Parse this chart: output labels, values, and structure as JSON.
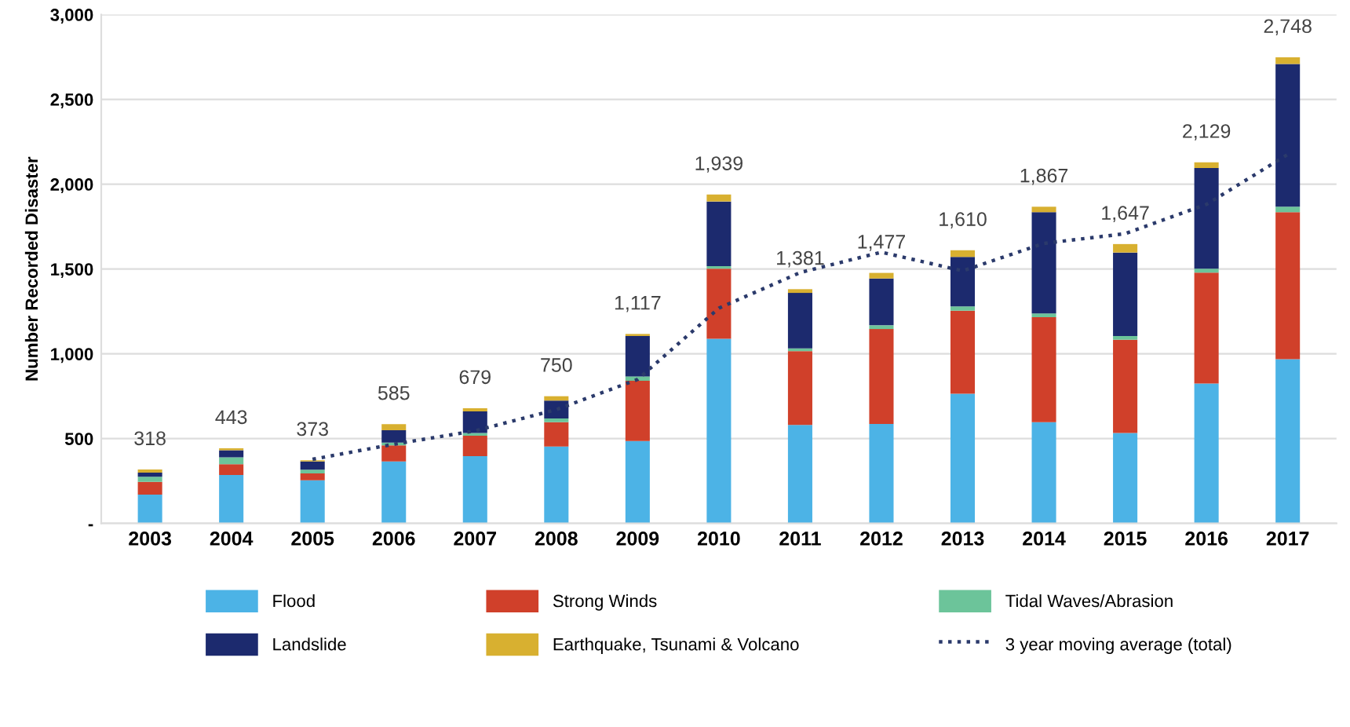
{
  "chart_data": {
    "type": "bar",
    "stacked": true,
    "ylabel": "Number Recorded Disaster",
    "categories": [
      "2003",
      "2004",
      "2005",
      "2006",
      "2007",
      "2008",
      "2009",
      "2010",
      "2011",
      "2012",
      "2013",
      "2014",
      "2015",
      "2016",
      "2017"
    ],
    "series": [
      {
        "name": "Flood",
        "color": "#4cb3e6",
        "values": [
          170,
          286,
          254,
          365,
          397,
          454,
          486,
          1089,
          581,
          587,
          765,
          597,
          533,
          825,
          968
        ]
      },
      {
        "name": "Strong Winds",
        "color": "#d0402a",
        "values": [
          75,
          63,
          41,
          95,
          120,
          143,
          355,
          413,
          435,
          559,
          489,
          619,
          550,
          654,
          867
        ]
      },
      {
        "name": "Tidal Waves/Abrasion",
        "color": "#6cc49a",
        "values": [
          30,
          41,
          22,
          16,
          16,
          22,
          26,
          15,
          16,
          22,
          25,
          22,
          22,
          23,
          32
        ]
      },
      {
        "name": "Landslide",
        "color": "#1c2a6e",
        "values": [
          25,
          42,
          48,
          73,
          127,
          105,
          238,
          381,
          327,
          276,
          292,
          597,
          492,
          593,
          841
        ]
      },
      {
        "name": "Earthquake, Tsunami & Volcano",
        "color": "#d8b030",
        "values": [
          18,
          11,
          8,
          36,
          19,
          26,
          12,
          41,
          22,
          33,
          39,
          32,
          50,
          34,
          40
        ]
      },
      {
        "name": "3 year moving average (total)",
        "type": "line",
        "line_style": "dotted",
        "color": "#2b3a6b",
        "values": [
          null,
          null,
          378,
          467,
          546,
          671,
          849,
          1269,
          1479,
          1599,
          1489,
          1651,
          1708,
          1881,
          2175
        ]
      }
    ],
    "totals": [
      "318",
      "443",
      "373",
      "585",
      "679",
      "750",
      "1,117",
      "1,939",
      "1,381",
      "1,477",
      "1,610",
      "1,867",
      "1,647",
      "2,129",
      "2,748"
    ],
    "ylim": [
      0,
      3000
    ],
    "yticks": [
      {
        "value": 0,
        "label": "-"
      },
      {
        "value": 500,
        "label": "500"
      },
      {
        "value": 1000,
        "label": "1,000"
      },
      {
        "value": 1500,
        "label": "1,500"
      },
      {
        "value": 2000,
        "label": "2,000"
      },
      {
        "value": 2500,
        "label": "2,500"
      },
      {
        "value": 3000,
        "label": "3,000"
      }
    ],
    "grid": "y",
    "legend": "bottom"
  }
}
